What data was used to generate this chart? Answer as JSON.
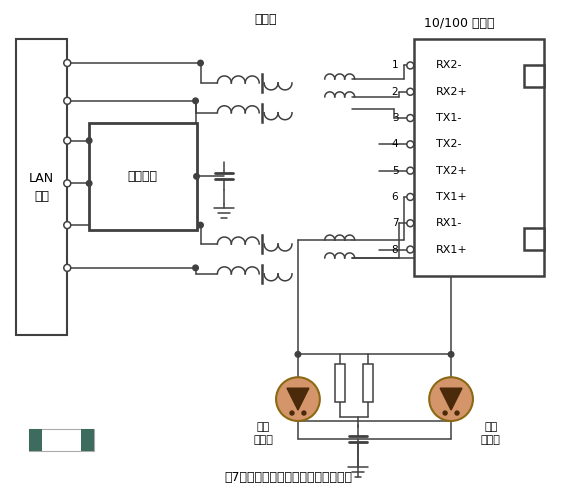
{
  "title": "图7　以太网接口过电压保护电路示例",
  "background": "#ffffff",
  "line_color": "#404040",
  "text_color": "#000000",
  "connector_color": "#3d6b5e",
  "surge_color": "#d4956a",
  "surge_edge": "#8B6914",
  "tri_color": "#4a2a0a",
  "pins": [
    "RX2-",
    "RX2+",
    "TX1-",
    "TX2-",
    "TX2+",
    "TX1+",
    "RX1-",
    "RX1+"
  ],
  "pin_labels": [
    "1",
    "2",
    "3",
    "4",
    "5",
    "6",
    "7",
    "8"
  ],
  "top_label": "10/100 以太网",
  "transformer_label": "变压器",
  "lan_label1": "LAN",
  "lan_label2": "芯片",
  "protection_label": "二级保护",
  "surge_label1": "浪涌",
  "surge_label2": "放电管",
  "figsize": [
    5.77,
    4.88
  ],
  "dpi": 100
}
